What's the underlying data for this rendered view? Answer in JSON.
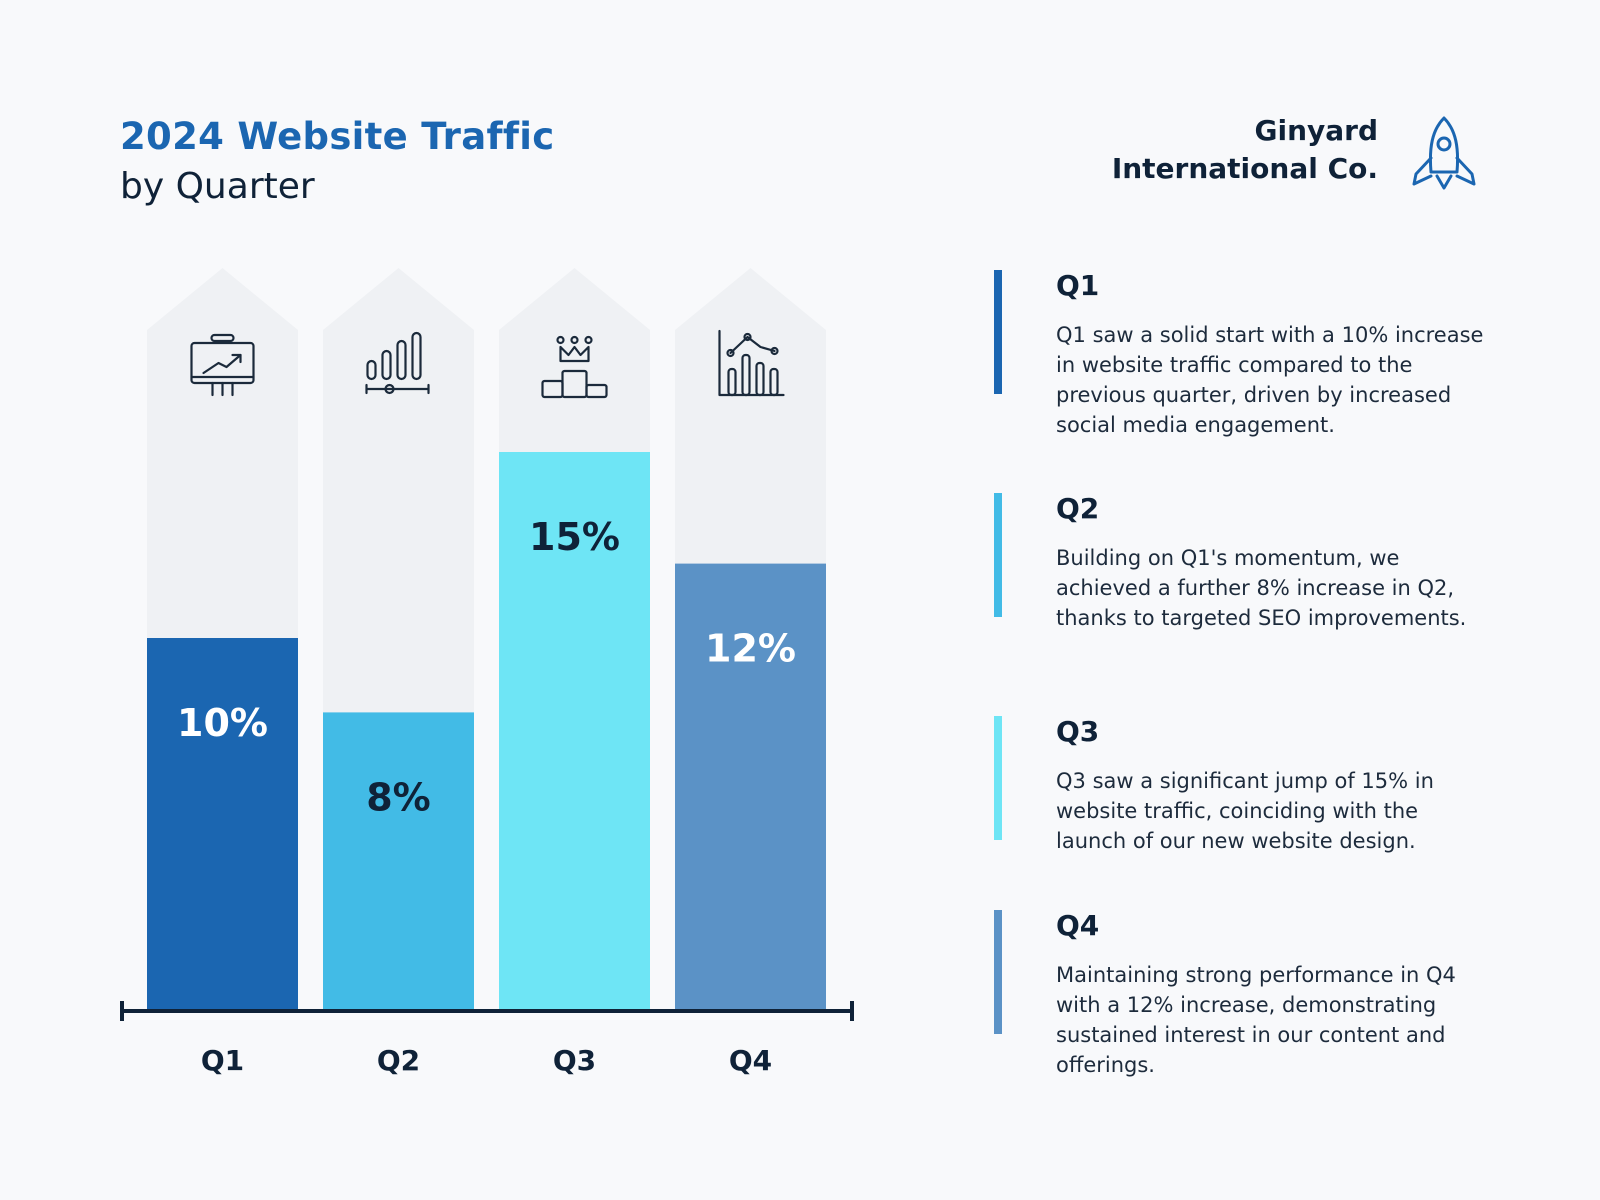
{
  "header": {
    "title_line1": "2024 Website Traffic",
    "title_line2": "by Quarter"
  },
  "brand": {
    "line1": "Ginyard",
    "line2": "International Co.",
    "icon": "rocket-icon",
    "icon_color": "#1b66b1"
  },
  "chart_data": {
    "type": "bar",
    "categories": [
      "Q1",
      "Q2",
      "Q3",
      "Q4"
    ],
    "values": [
      10,
      8,
      15,
      12
    ],
    "value_labels": [
      "10%",
      "8%",
      "15%",
      "12%"
    ],
    "bar_colors": [
      "#1b66b1",
      "#42bbe6",
      "#6ee5f5",
      "#5b92c6"
    ],
    "label_colors": [
      "#ffffff",
      "#0f2238",
      "#0f2238",
      "#ffffff"
    ],
    "icons": [
      "presentation-board-icon",
      "bar-levels-icon",
      "podium-crown-icon",
      "line-bar-chart-icon"
    ],
    "ylim": [
      0,
      20
    ],
    "grid": false,
    "legend": "none"
  },
  "descriptions": [
    {
      "heading": "Q1",
      "color": "#1b66b1",
      "text": "Q1 saw a solid start with a 10% increase in website traffic compared to the previous quarter, driven by increased social media engagement."
    },
    {
      "heading": "Q2",
      "color": "#42bbe6",
      "text": "Building on Q1's momentum, we achieved a further 8% increase in Q2, thanks to targeted SEO improvements."
    },
    {
      "heading": "Q3",
      "color": "#6ee5f5",
      "text": "Q3 saw a significant jump of 15% in website traffic, coinciding with the launch of our new website design."
    },
    {
      "heading": "Q4",
      "color": "#5b92c6",
      "text": "Maintaining strong performance in Q4 with a 12% increase, demonstrating sustained interest in our content and offerings."
    }
  ]
}
